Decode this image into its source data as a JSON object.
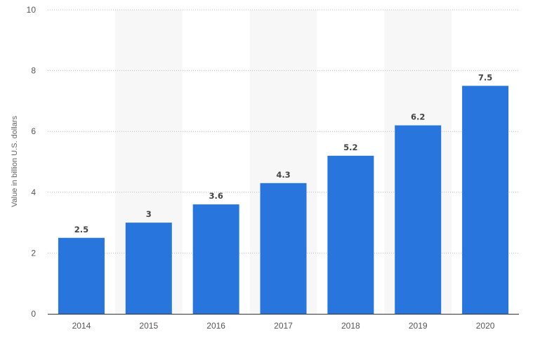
{
  "chart_data": {
    "type": "bar",
    "categories": [
      "2014",
      "2015",
      "2016",
      "2017",
      "2018",
      "2019",
      "2020"
    ],
    "values": [
      2.5,
      3,
      3.6,
      4.3,
      5.2,
      6.2,
      7.5
    ],
    "value_labels": [
      "2.5",
      "3",
      "3.6",
      "4.3",
      "5.2",
      "6.2",
      "7.5"
    ],
    "ylabel": "Value in billion U.S. dollars",
    "xlabel": "",
    "ylim": [
      0,
      10
    ],
    "yticks": [
      "0",
      "2",
      "4",
      "6",
      "8",
      "10"
    ],
    "grid": true,
    "bar_color": "#2876dd",
    "band_color": "#f7f7f7",
    "grid_color": "#bbbbbb"
  }
}
